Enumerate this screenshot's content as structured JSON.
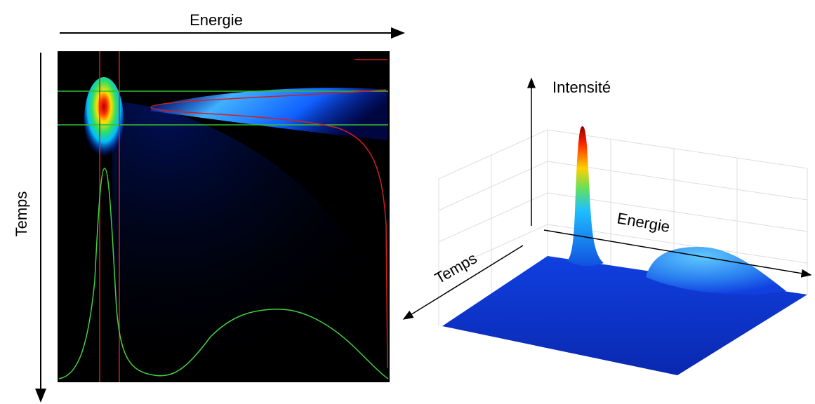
{
  "labels": {
    "top_axis": "Energie",
    "left_axis": "Temps",
    "intensity": "Intensité",
    "surface_energy": "Energie",
    "surface_time": "Temps"
  }
}
